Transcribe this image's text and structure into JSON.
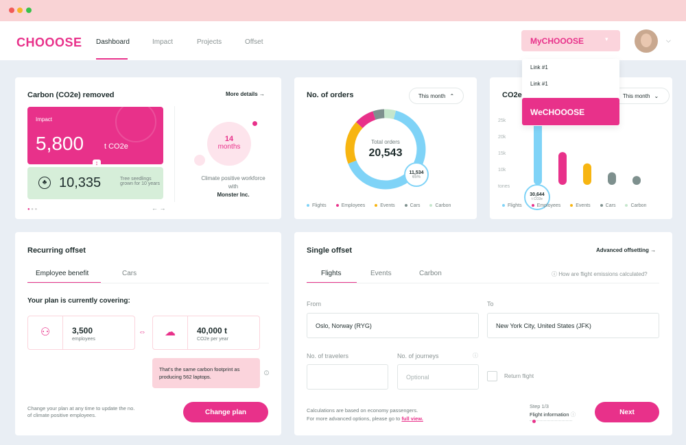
{
  "colors": {
    "brand": "#e8318a",
    "green": "#d6eed9",
    "pink_light": "#fbd4dc",
    "blue": "#7fd3f7",
    "yellow": "#f7b511",
    "gray": "#7e908e"
  },
  "nav": {
    "logo": "CHOOOSE",
    "links": [
      "Dashboard",
      "Impact",
      "Projects",
      "Offset"
    ],
    "active": "Dashboard",
    "my_choose": "MyCHOOOSE",
    "menu": [
      "Link #1",
      "Link #1"
    ],
    "we_choose": "WeCHOOOSE"
  },
  "carbon": {
    "title": "Carbon (CO2e) removed",
    "more": "More details",
    "impact_label": "Impact",
    "impact_value": "5,800",
    "impact_unit": "t CO2e",
    "seedlings_value": "10,335",
    "seedlings_text": "Tree seedlings grown for 10 years",
    "months_value": "14",
    "months_label": "months",
    "climate_text": "Climate positive workforce with",
    "company": "Monster Inc."
  },
  "orders": {
    "title": "No. of orders",
    "filter": "This month",
    "total_label": "Total orders",
    "total_value": "20,543",
    "tooltip_value": "11,534",
    "tooltip_pct": "65%",
    "legend": [
      "Flights",
      "Employees",
      "Events",
      "Cars",
      "Carbon"
    ]
  },
  "co2": {
    "title": "CO2e I",
    "filter": "This month",
    "yticks": [
      "25k",
      "20k",
      "15k",
      "10k",
      "tones"
    ],
    "tooltip_value": "30,644",
    "tooltip_unit": "t CO2e",
    "legend": [
      "Flights",
      "Employees",
      "Events",
      "Cars",
      "Carbon"
    ]
  },
  "chart_data": {
    "type": "bar",
    "categories": [
      "Flights",
      "Employees",
      "Events",
      "Cars",
      "Carbon"
    ],
    "values": [
      30644,
      13000,
      8500,
      5000,
      3500
    ],
    "yticks": [
      "25k",
      "20k",
      "15k",
      "10k"
    ],
    "ylim": [
      0,
      32000
    ]
  },
  "recurring": {
    "title": "Recurring offset",
    "tabs": [
      "Employee benefit",
      "Cars"
    ],
    "covering": "Your plan is currently covering:",
    "employees_value": "3,500",
    "employees_label": "employees",
    "co2_value": "40,000 t",
    "co2_label": "CO2e per year",
    "note": "That's the same carbon footprint as producing 562 laptops.",
    "footer": "Change your plan at any time to update the no. of climate positive employees.",
    "button": "Change plan"
  },
  "single": {
    "title": "Single offset",
    "advanced": "Advanced offsetting",
    "tabs": [
      "Flights",
      "Events",
      "Carbon"
    ],
    "help": "How are flight emissions calculated?",
    "from_label": "From",
    "from_value": "Oslo, Norway (RYG)",
    "to_label": "To",
    "to_value": "New York City, United States (JFK)",
    "travelers_label": "No. of travelers",
    "journeys_label": "No. of journeys",
    "journeys_placeholder": "Optional",
    "return_label": "Return flight",
    "calc_text": "Calculations are based on economy passengers.",
    "calc_text2": "For more advanced options, please go to",
    "full_view": "full view.",
    "step": "Step 1/3",
    "step_label": "Flight information",
    "button": "Next"
  }
}
